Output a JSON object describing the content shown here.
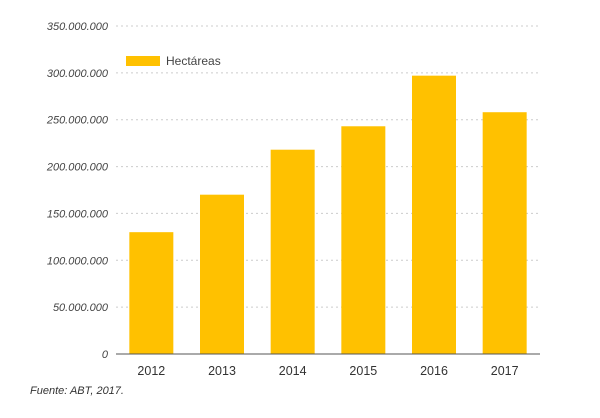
{
  "chart_data": {
    "type": "bar",
    "categories": [
      "2012",
      "2013",
      "2014",
      "2015",
      "2016",
      "2017"
    ],
    "series": [
      {
        "name": "Hectáreas",
        "values": [
          130000000,
          170000000,
          218000000,
          243000000,
          297000000,
          258000000
        ]
      }
    ],
    "ylim": [
      0,
      350000000
    ],
    "yticks": [
      0,
      50000000,
      100000000,
      150000000,
      200000000,
      250000000,
      300000000,
      350000000
    ],
    "ytick_labels": [
      "0",
      "50.000.000",
      "100.000.000",
      "150.000.000",
      "200.000.000",
      "250.000.000",
      "300.000.000",
      "350.000.000"
    ],
    "grid": true,
    "legend": "top-left",
    "colors": {
      "bar": "#FFC100",
      "grid": "#cccccc",
      "axis": "#555555"
    }
  },
  "source": "Fuente: ABT, 2017."
}
